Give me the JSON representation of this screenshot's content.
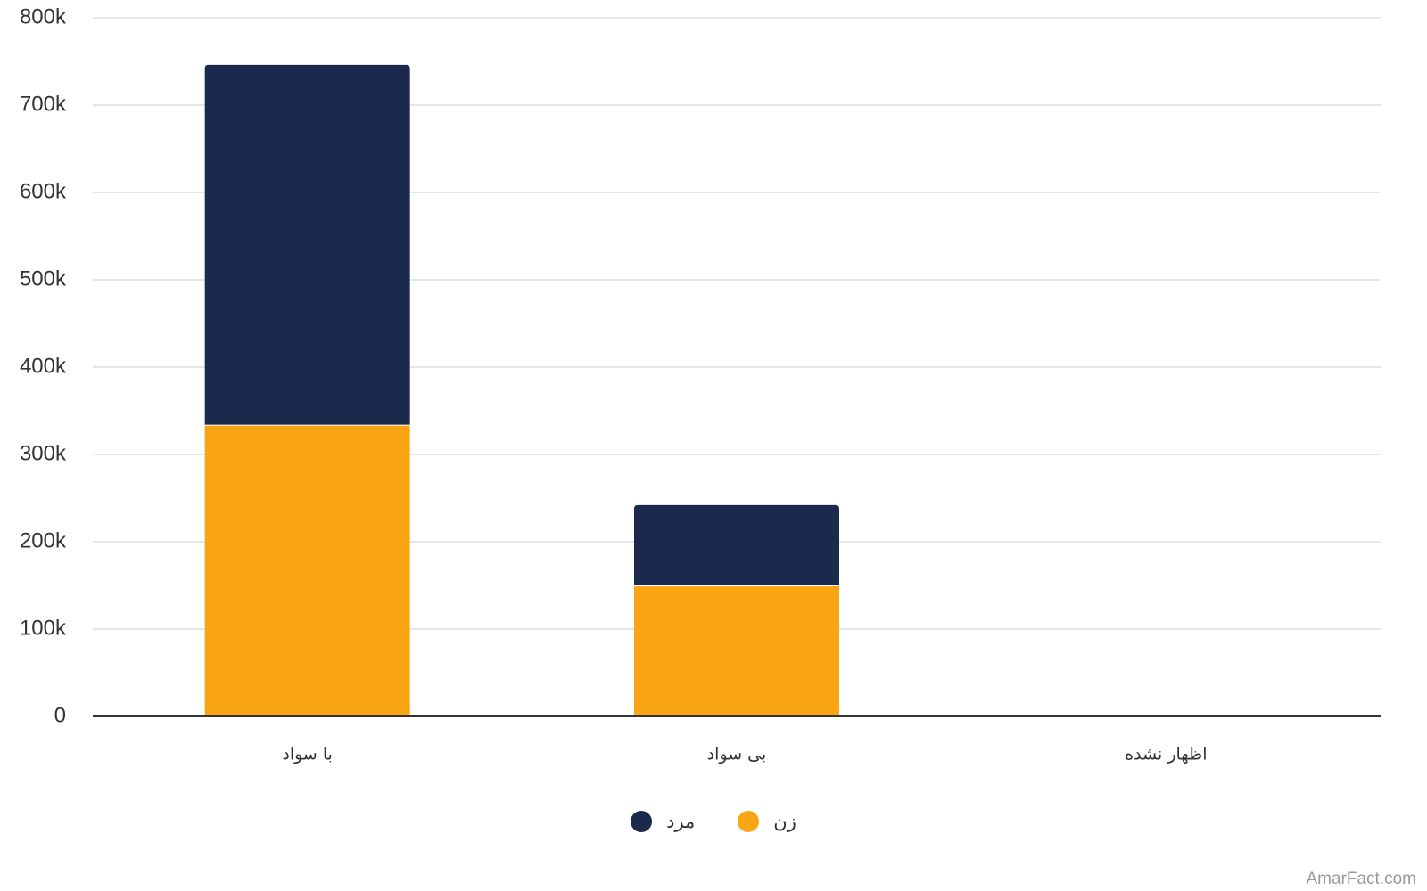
{
  "chart_data": {
    "type": "bar",
    "stacked": true,
    "categories": [
      "با سواد",
      "بی سواد",
      "اظهار نشده"
    ],
    "series": [
      {
        "name": "زن",
        "color": "#FAA514",
        "values": [
          334000,
          150000,
          0
        ]
      },
      {
        "name": "مرد",
        "color": "#1B294D",
        "values": [
          412000,
          92000,
          0
        ]
      }
    ],
    "ylim": [
      0,
      800000
    ],
    "yticks": [
      0,
      100000,
      200000,
      300000,
      400000,
      500000,
      600000,
      700000,
      800000
    ],
    "ytick_labels": [
      "0",
      "100k",
      "200k",
      "300k",
      "400k",
      "500k",
      "600k",
      "700k",
      "800k"
    ],
    "grid": true,
    "legend_position": "bottom-center",
    "legend_order": [
      "مرد",
      "زن"
    ],
    "title": "",
    "xlabel": "",
    "ylabel": ""
  },
  "credit": "AmarFact.com",
  "colors": {
    "grid": "#E6E6E6",
    "axis": "#333333",
    "text": "#333333",
    "credit": "#999999"
  }
}
